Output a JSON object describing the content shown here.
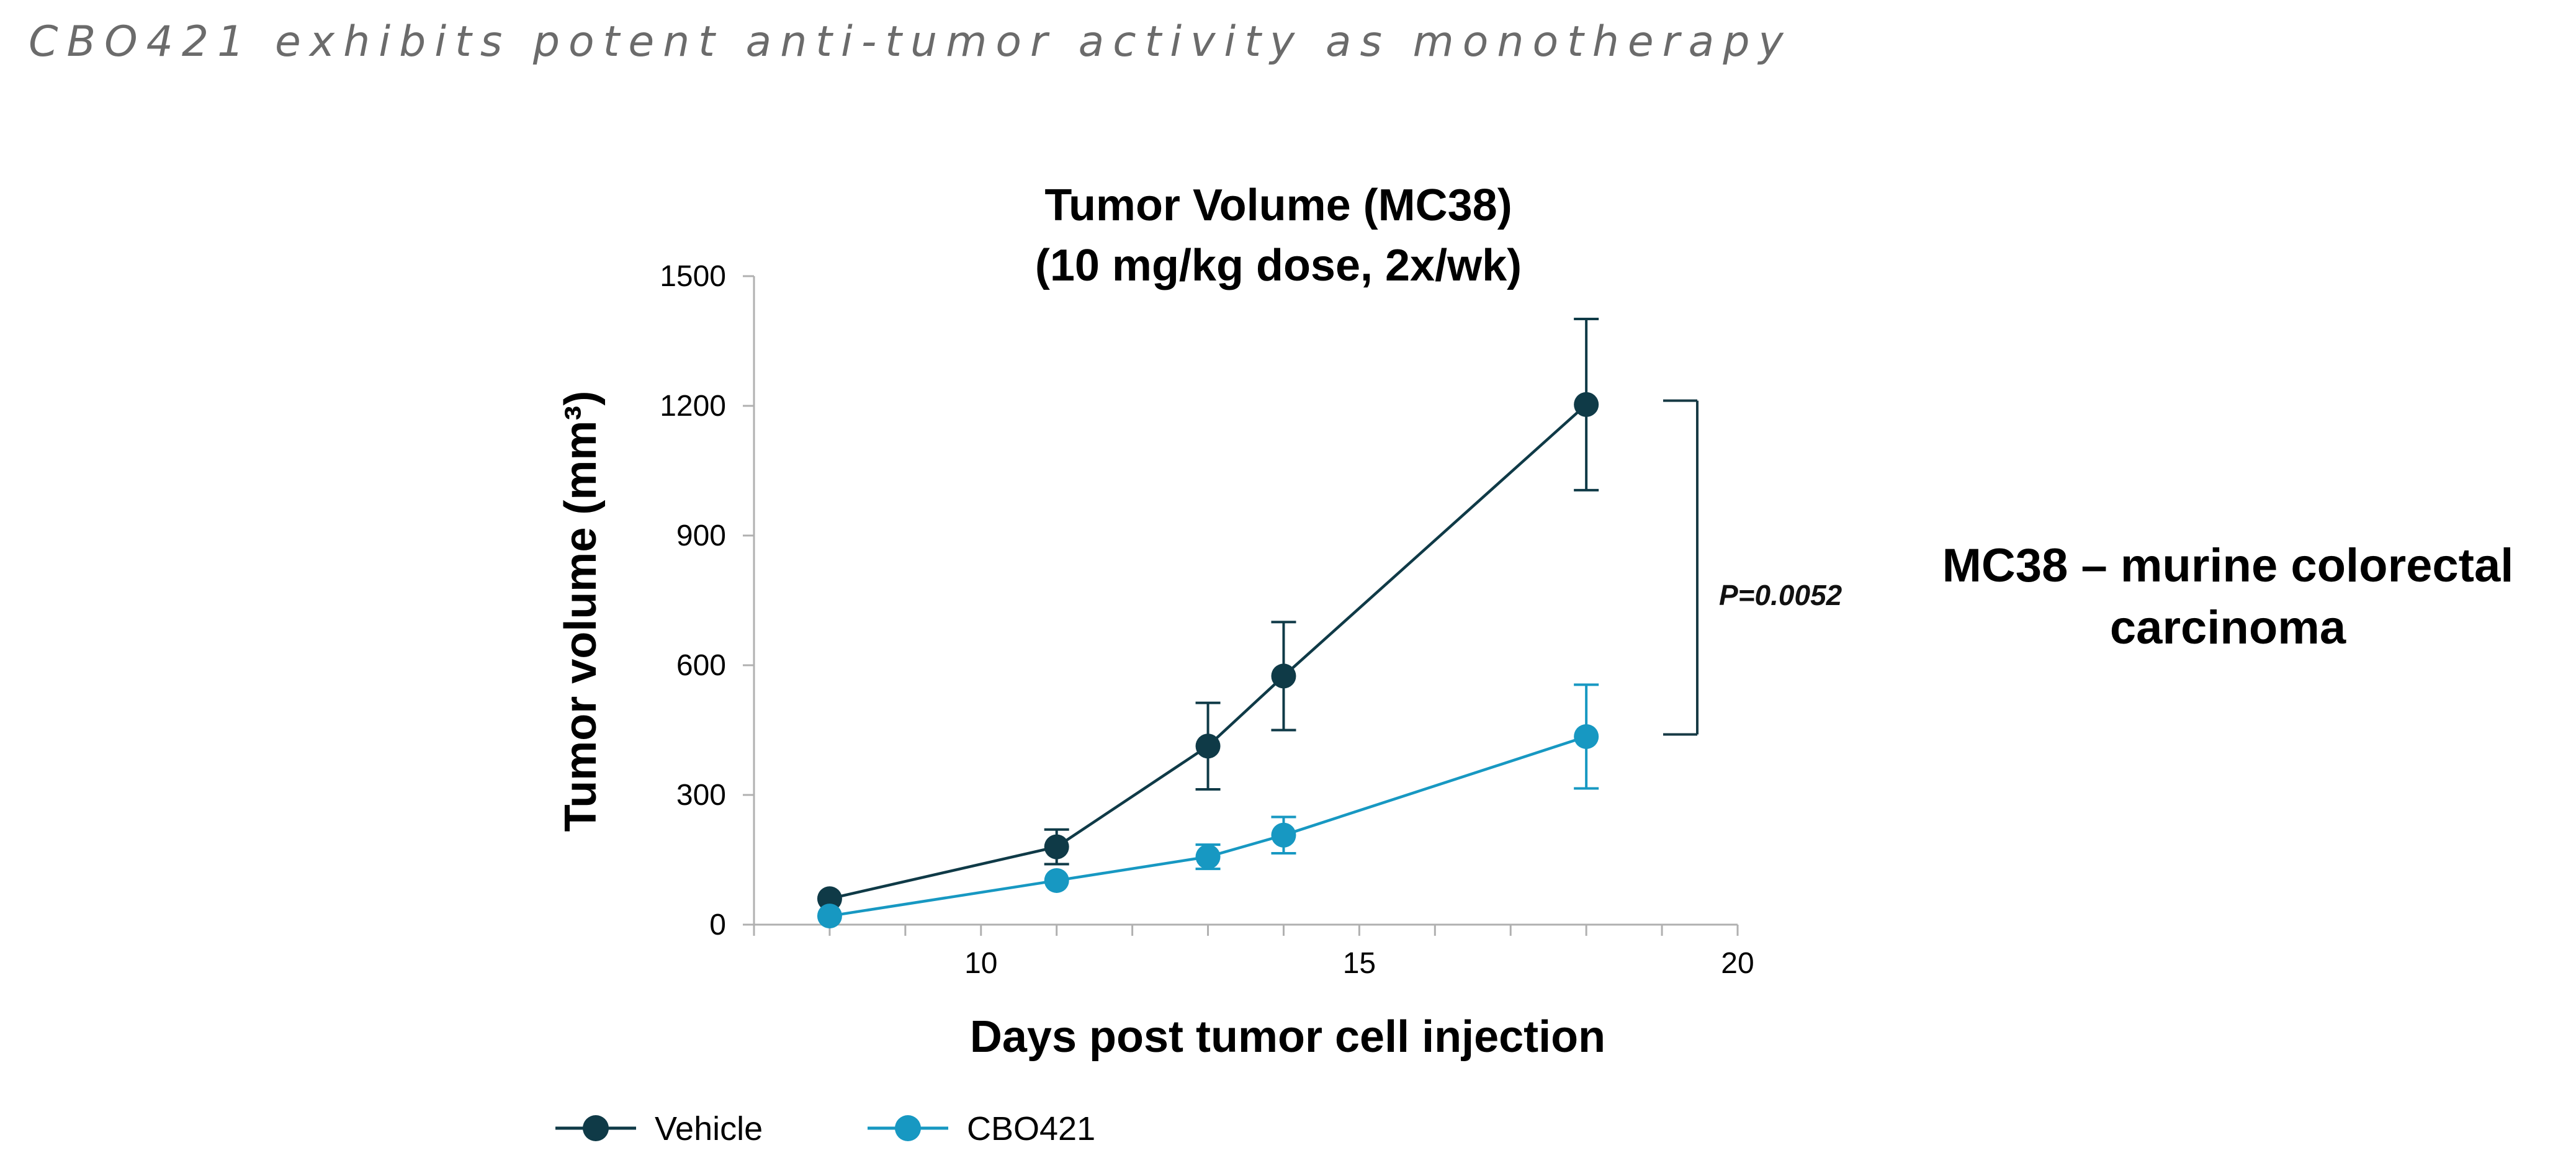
{
  "slide": {
    "title": "CBO421 exhibits potent anti-tumor activity as monotherapy"
  },
  "note": {
    "line1": "MC38 – murine colorectal",
    "line2": "carcinoma"
  },
  "colors": {
    "vehicle": "#0f3a47",
    "cbo421": "#1798c2",
    "axis": "#b0b0b0",
    "bracket": "#173a45"
  },
  "chart_data": {
    "type": "line",
    "title_line1": "Tumor Volume (MC38)",
    "title_line2": "(10 mg/kg dose, 2x/wk)",
    "xlabel": "Days post tumor cell injection",
    "ylabel": "Tumor volume (mm³)",
    "xlim": [
      7,
      20
    ],
    "ylim": [
      0,
      1500
    ],
    "xticks": [
      10,
      15,
      20
    ],
    "xminor_step": 1,
    "yticks": [
      0,
      300,
      600,
      900,
      1200,
      1500
    ],
    "grid": false,
    "legend_position": "bottom-left",
    "series": [
      {
        "name": "Vehicle",
        "color": "#0f3a47",
        "x": [
          8,
          11,
          13,
          14,
          18
        ],
        "y": [
          60,
          180,
          413,
          575,
          1203
        ],
        "err": [
          0,
          40,
          100,
          125,
          198
        ]
      },
      {
        "name": "CBO421",
        "color": "#1798c2",
        "x": [
          8,
          11,
          13,
          14,
          18
        ],
        "y": [
          20,
          102,
          157,
          207,
          435
        ],
        "err": [
          0,
          0,
          28,
          42,
          120
        ]
      }
    ],
    "annotation": {
      "text": "P=0.0052",
      "bracket_y": [
        1212,
        440
      ]
    }
  }
}
